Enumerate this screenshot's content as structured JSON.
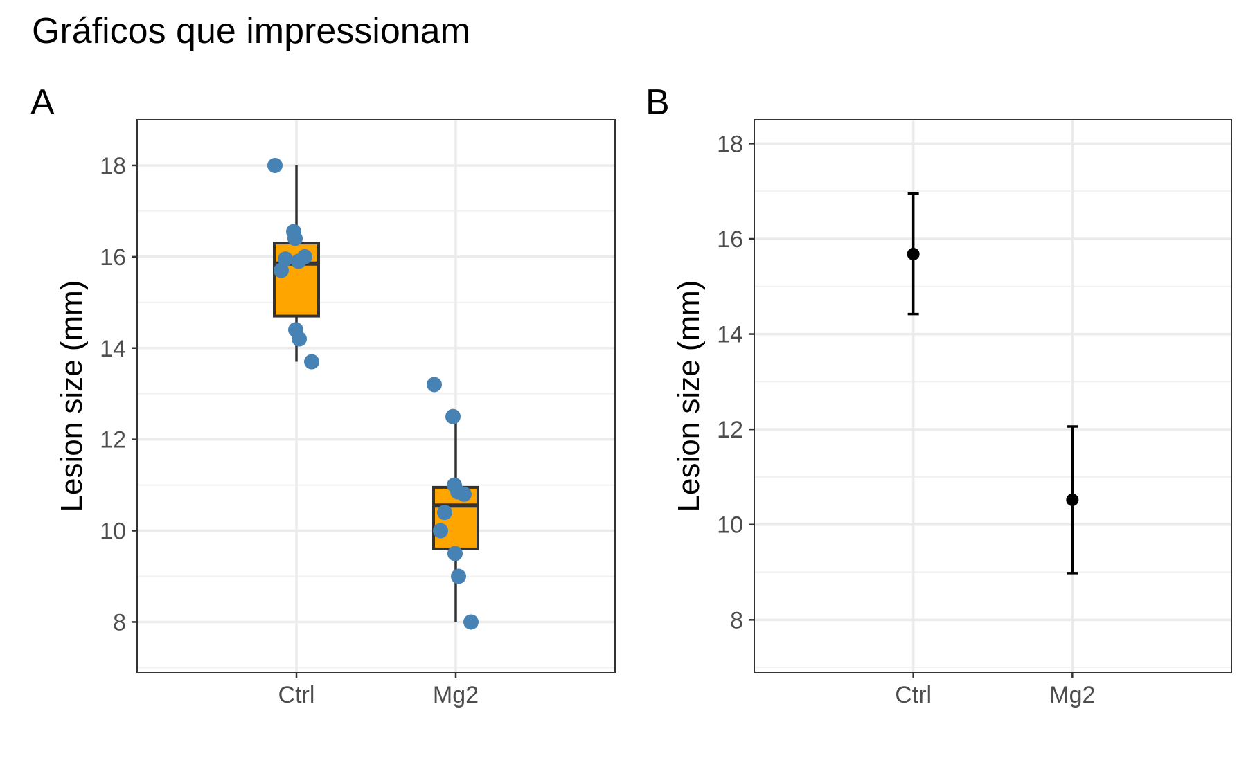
{
  "title": "Gráficos que impressionam",
  "colors": {
    "box_fill": "#FFA500",
    "box_line": "#333333",
    "point": "#4682B4",
    "mean_point": "#000000",
    "grid_major": "#EBEBEB",
    "grid_minor": "#F2F2F2",
    "panel_border": "#333333",
    "tick_text": "#4D4D4D"
  },
  "chart_data": [
    {
      "panel": "A",
      "type": "box",
      "categories": [
        "Ctrl",
        "Mg2"
      ],
      "ylabel": "Lesion size (mm)",
      "xlabel": "",
      "ylim": [
        6.9,
        19.0
      ],
      "yticks": [
        8,
        10,
        12,
        14,
        16,
        18
      ],
      "grid": true,
      "boxes": [
        {
          "category": "Ctrl",
          "whisker_low": 13.7,
          "q1": 14.7,
          "median": 15.85,
          "q3": 16.3,
          "whisker_high": 18.0
        },
        {
          "category": "Mg2",
          "whisker_low": 8.0,
          "q1": 9.6,
          "median": 10.55,
          "q3": 10.95,
          "whisker_high": 12.5
        }
      ],
      "points": [
        {
          "category": "Ctrl",
          "values": [
            18.0,
            16.55,
            16.4,
            16.0,
            15.9,
            15.95,
            15.7,
            14.4,
            14.2,
            13.7
          ]
        },
        {
          "category": "Mg2",
          "values": [
            13.2,
            12.5,
            11.0,
            10.8,
            10.85,
            10.4,
            10.0,
            9.5,
            9.0,
            8.0
          ]
        }
      ]
    },
    {
      "panel": "B",
      "type": "errorbar",
      "categories": [
        "Ctrl",
        "Mg2"
      ],
      "ylabel": "Lesion size (mm)",
      "xlabel": "",
      "ylim": [
        6.9,
        18.5
      ],
      "yticks": [
        8,
        10,
        12,
        14,
        16,
        18
      ],
      "grid": true,
      "series": [
        {
          "category": "Ctrl",
          "mean": 15.68,
          "lower": 14.42,
          "upper": 16.95
        },
        {
          "category": "Mg2",
          "mean": 10.52,
          "lower": 8.98,
          "upper": 12.06
        }
      ]
    }
  ]
}
